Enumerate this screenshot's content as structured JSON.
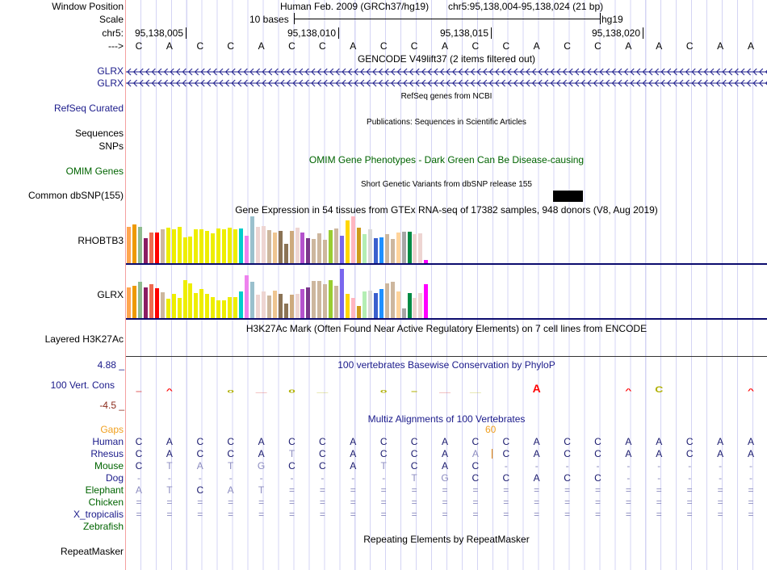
{
  "header": {
    "window_position_label": "Window Position",
    "scale_label": "Scale",
    "chrom_label": "chr5:",
    "strand_label": "--->",
    "assembly_title": "Human Feb. 2009 (GRCh37/hg19)",
    "position": "chr5:95,138,004-95,138,024 (21 bp)",
    "scale_text": "10 bases",
    "scale_db": "hg19",
    "coord_ticks": [
      "95,138,005",
      "95,138,010",
      "95,138,015",
      "95,138,020"
    ]
  },
  "sequence": [
    "C",
    "A",
    "C",
    "C",
    "A",
    "C",
    "C",
    "A",
    "C",
    "C",
    "A",
    "C",
    "C",
    "A",
    "C",
    "C",
    "A",
    "A",
    "C",
    "A",
    "A"
  ],
  "tracks": {
    "gencode": {
      "title": "GENCODE V49lift37 (2 items filtered out)",
      "items": [
        "GLRX",
        "GLRX"
      ]
    },
    "refseq": {
      "title": "RefSeq genes from NCBI",
      "label": "RefSeq Curated"
    },
    "publications": {
      "title": "Publications: Sequences in Scientific Articles",
      "label": "Sequences"
    },
    "snps_label": "SNPs",
    "omim": {
      "title": "OMIM Gene Phenotypes - Dark Green Can Be Disease-causing",
      "label": "OMIM Genes"
    },
    "dbsnp": {
      "title": "Short Genetic Variants from dbSNP release 155",
      "label": "Common dbSNP(155)"
    },
    "gtex": {
      "title": "Gene Expression in 54 tissues from GTEx RNA-seq of 17382 samples, 948 donors (V8, Aug 2019)"
    },
    "h3k27ac": {
      "title": "H3K27Ac Mark (Often Found Near Active Regulatory Elements) on 7 cell lines from ENCODE",
      "label": "Layered H3K27Ac"
    },
    "phylop": {
      "title": "100 vertebrates Basewise Conservation by PhyloP",
      "label": "100 Vert. Cons",
      "ymax": "4.88 _",
      "ymin": "-4.5 _"
    },
    "multiz": {
      "title": "Multiz Alignments of 100 Vertebrates",
      "gaps_label": "Gaps",
      "gap_count": "60"
    },
    "repeatmasker": {
      "title": "Repeating Elements by RepeatMasker",
      "label": "RepeatMasker"
    }
  },
  "chart_data": {
    "type": "bar",
    "title": "Gene Expression in 54 tissues from GTEx RNA-seq",
    "tissue_colors": [
      "#FFA54F",
      "#EE9A00",
      "#8FBC8F",
      "#8B1C62",
      "#EE6A50",
      "#FF0000",
      "#CDB79E",
      "#EEEE00",
      "#EEEE00",
      "#EEEE00",
      "#EEEE00",
      "#EEEE00",
      "#EEEE00",
      "#EEEE00",
      "#EEEE00",
      "#EEEE00",
      "#EEEE00",
      "#EEEE00",
      "#EEEE00",
      "#EEEE00",
      "#00CDCD",
      "#EE82EE",
      "#9AC0CD",
      "#EED5D2",
      "#EED5D2",
      "#CDB79E",
      "#EEC591",
      "#8B7355",
      "#8B7355",
      "#CDAA7D",
      "#EED5D2",
      "#B452CD",
      "#7A378B",
      "#CDB79E",
      "#CDB79E",
      "#CDB79E",
      "#9ACD32",
      "#CDB79E",
      "#7A67EE",
      "#FFD700",
      "#FFB6C1",
      "#CD9B1D",
      "#B4EEB4",
      "#D9D9D9",
      "#3A5FCD",
      "#1E90FF",
      "#CDB79E",
      "#CDB79E",
      "#FFD39B",
      "#A6A6A6",
      "#008B45",
      "#EED5D2",
      "#EED5D2",
      "#FF00FF"
    ],
    "series": [
      {
        "name": "RHOBTB3",
        "values": [
          135,
          144,
          135,
          93,
          113,
          113,
          125,
          131,
          125,
          135,
          96,
          98,
          125,
          125,
          120,
          110,
          128,
          125,
          131,
          125,
          128,
          101,
          173,
          135,
          137,
          123,
          113,
          119,
          71,
          119,
          131,
          113,
          93,
          89,
          110,
          86,
          123,
          128,
          101,
          159,
          173,
          131,
          107,
          125,
          93,
          95,
          107,
          89,
          113,
          116,
          116,
          107,
          110,
          11
        ]
      },
      {
        "name": "GLRX",
        "values": [
          113,
          119,
          136,
          113,
          125,
          110,
          95,
          71,
          89,
          74,
          140,
          128,
          92,
          107,
          89,
          77,
          65,
          65,
          77,
          77,
          98,
          158,
          136,
          86,
          98,
          83,
          101,
          89,
          53,
          86,
          89,
          107,
          113,
          137,
          137,
          125,
          140,
          119,
          182,
          89,
          74,
          44,
          98,
          101,
          92,
          107,
          128,
          134,
          98,
          35,
          92,
          74,
          92,
          125
        ]
      }
    ]
  },
  "phylop_marks": [
    {
      "i": 0,
      "letter": "=",
      "color": "#e06060",
      "scale": 0.35
    },
    {
      "i": 1,
      "letter": "^",
      "color": "#ff0000",
      "scale": 0.5
    },
    {
      "i": 3,
      "letter": "o",
      "color": "#b0b000",
      "scale": 0.45
    },
    {
      "i": 4,
      "letter": "—",
      "color": "#e06060",
      "scale": 0.25
    },
    {
      "i": 5,
      "letter": "o",
      "color": "#b0b000",
      "scale": 0.55
    },
    {
      "i": 6,
      "letter": "—",
      "color": "#b0b000",
      "scale": 0.2
    },
    {
      "i": 8,
      "letter": "o",
      "color": "#b0b000",
      "scale": 0.45
    },
    {
      "i": 9,
      "letter": "=",
      "color": "#b0b000",
      "scale": 0.35
    },
    {
      "i": 10,
      "letter": "—",
      "color": "#e06060",
      "scale": 0.25
    },
    {
      "i": 11,
      "letter": "—",
      "color": "#b0b000",
      "scale": 0.2
    },
    {
      "i": 13,
      "letter": "A",
      "color": "#ff0000",
      "scale": 1.0
    },
    {
      "i": 16,
      "letter": "^",
      "color": "#ff0000",
      "scale": 0.5
    },
    {
      "i": 17,
      "letter": "C",
      "color": "#b0b000",
      "scale": 0.8
    },
    {
      "i": 20,
      "letter": "^",
      "color": "#ff0000",
      "scale": 0.5
    }
  ],
  "alignment": [
    {
      "name": "Human",
      "color": "#1a1a8a",
      "bases": [
        "C",
        "A",
        "C",
        "C",
        "A",
        "C",
        "C",
        "A",
        "C",
        "C",
        "A",
        "C",
        "C",
        "A",
        "C",
        "C",
        "A",
        "A",
        "C",
        "A",
        "A"
      ]
    },
    {
      "name": "Rhesus",
      "color": "#1a1a8a",
      "bases": [
        "C",
        "A",
        "C",
        "C",
        "A",
        "t",
        "C",
        "A",
        "C",
        "C",
        "A",
        "a",
        "C",
        "A",
        "C",
        "C",
        "A",
        "A",
        "C",
        "A",
        "A"
      ]
    },
    {
      "name": "Mouse",
      "color": "#006400",
      "bases": [
        "C",
        "t",
        "a",
        "t",
        "g",
        "C",
        "C",
        "A",
        "t",
        "C",
        "A",
        "C",
        "-",
        "-",
        "-",
        "-",
        "-",
        "-",
        "-",
        "-",
        "-"
      ]
    },
    {
      "name": "Dog",
      "color": "#1a1a8a",
      "bases": [
        "-",
        "-",
        "-",
        "-",
        "-",
        "-",
        "-",
        "-",
        "-",
        "t",
        "g",
        "C",
        "C",
        "A",
        "C",
        "C",
        "-",
        "-",
        "-",
        "-",
        "-"
      ]
    },
    {
      "name": "Elephant",
      "color": "#006400",
      "bases": [
        "a",
        "t",
        "C",
        "a",
        "t",
        "=",
        "=",
        "=",
        "=",
        "=",
        "=",
        "=",
        "=",
        "=",
        "=",
        "=",
        "=",
        "=",
        "=",
        "=",
        "="
      ]
    },
    {
      "name": "Chicken",
      "color": "#006400",
      "bases": [
        "=",
        "=",
        "=",
        "=",
        "=",
        "=",
        "=",
        "=",
        "=",
        "=",
        "=",
        "=",
        "=",
        "=",
        "=",
        "=",
        "=",
        "=",
        "=",
        "=",
        "="
      ]
    },
    {
      "name": "X_tropicalis",
      "color": "#1a1a8a",
      "bases": [
        "=",
        "=",
        "=",
        "=",
        "=",
        "=",
        "=",
        "=",
        "=",
        "=",
        "=",
        "=",
        "=",
        "=",
        "=",
        "=",
        "=",
        "=",
        "=",
        "=",
        "="
      ]
    },
    {
      "name": "Zebrafish",
      "color": "#006400",
      "bases": []
    }
  ]
}
